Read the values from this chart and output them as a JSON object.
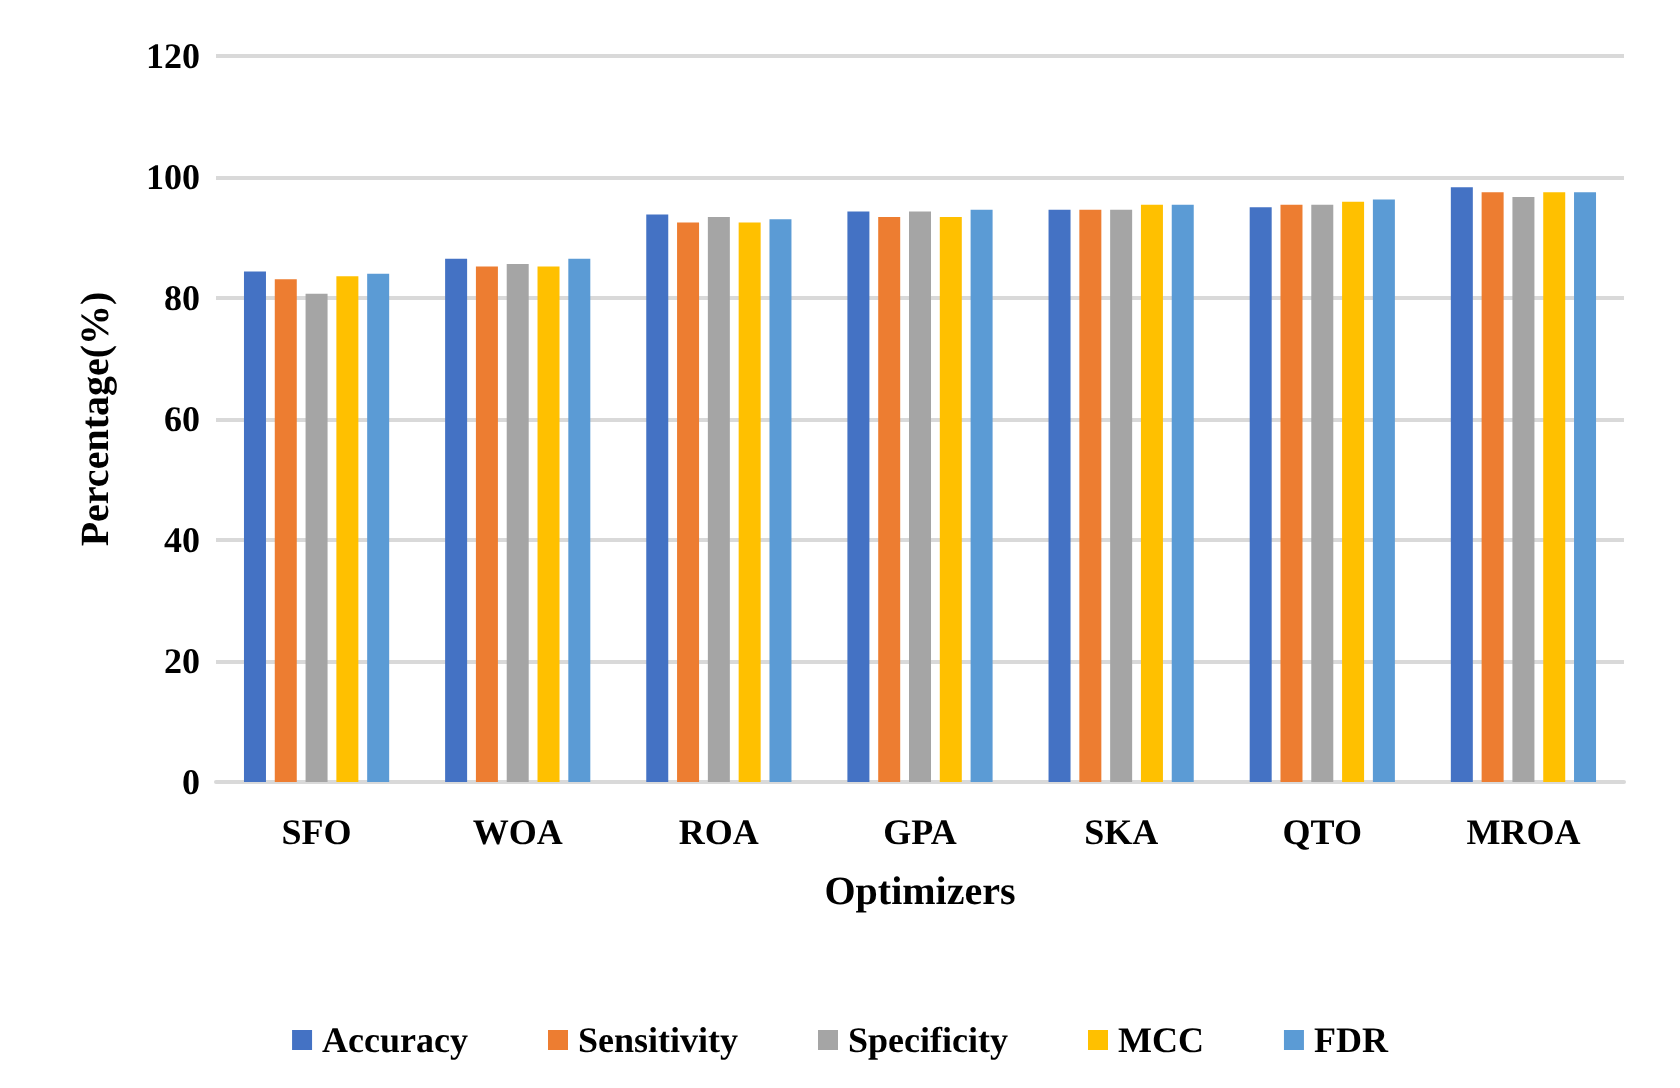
{
  "chart_data": {
    "type": "bar",
    "xlabel": "Optimizers",
    "ylabel": "Percentage(%)",
    "categories": [
      "SFO",
      "WOA",
      "ROA",
      "GPA",
      "SKA",
      "QTO",
      "MROA"
    ],
    "series": [
      {
        "name": "Accuracy",
        "color": "#4472c4",
        "values": [
          84.4,
          86.5,
          93.8,
          94.3,
          94.6,
          95.0,
          98.3
        ]
      },
      {
        "name": "Sensitivity",
        "color": "#ed7d31",
        "values": [
          83.1,
          85.2,
          92.5,
          93.4,
          94.6,
          95.4,
          97.5
        ]
      },
      {
        "name": "Specificity",
        "color": "#a5a5a5",
        "values": [
          80.7,
          85.6,
          93.4,
          94.3,
          94.6,
          95.4,
          96.7
        ]
      },
      {
        "name": "MCC",
        "color": "#ffc000",
        "values": [
          83.6,
          85.2,
          92.5,
          93.4,
          95.4,
          95.9,
          97.5
        ]
      },
      {
        "name": "FDR",
        "color": "#5b9bd5",
        "values": [
          84.0,
          86.5,
          93.0,
          94.6,
          95.4,
          96.3,
          97.5
        ]
      }
    ],
    "ylim": [
      0,
      120
    ],
    "yticks": [
      0,
      20,
      40,
      60,
      80,
      100,
      120
    ],
    "grid": "y",
    "legend": "bottom"
  }
}
